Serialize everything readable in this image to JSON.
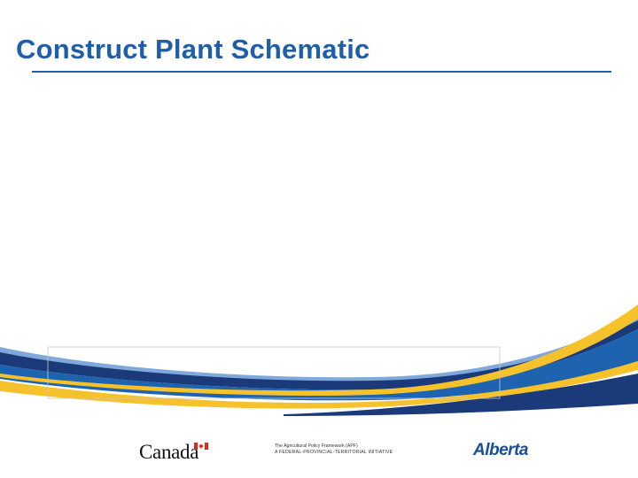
{
  "slide": {
    "title": "Construct Plant Schematic"
  },
  "footer": {
    "canada_wordmark": "Canada",
    "apf_line1": "The Agricultural Policy Framework (APF)",
    "apf_line2": "A FEDERAL-PROVINCIAL-TERRITORIAL INITIATIVE",
    "alberta_wordmark": "Alberta"
  },
  "colors": {
    "title": "#1f5ea8",
    "band_gold": "#f5c22b",
    "band_blue": "#1d63b0",
    "band_navy": "#1b3a7a",
    "band_light_blue": "#5b8fd0"
  },
  "icons": {
    "flag": "canada-flag-icon"
  }
}
